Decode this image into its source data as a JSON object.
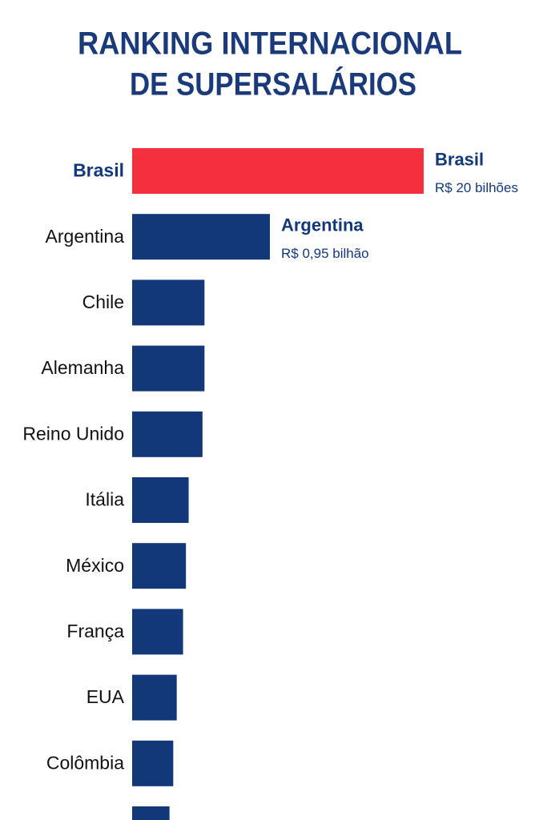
{
  "chart_data": {
    "type": "bar",
    "orientation": "horizontal",
    "log_scale": true,
    "title": [
      "RANKING INTERNACIONAL",
      "DE SUPERSALÁRIOS"
    ],
    "categories": [
      "Brasil",
      "Argentina",
      "Chile",
      "Alemanha",
      "Reino Unido",
      "Itália",
      "México",
      "França",
      "EUA",
      "Colômbia",
      null
    ],
    "values": [
      20,
      0.95,
      0.26,
      0.26,
      0.25,
      0.19,
      0.18,
      0.17,
      0.15,
      0.14,
      0.13
    ],
    "value_labels": [
      "R$ 20 bilhões",
      "R$ 0,95 bilhão",
      null,
      null,
      null,
      null,
      null,
      null,
      null,
      null,
      null
    ],
    "colors": [
      "#f5303e",
      "#13387a",
      "#13387a",
      "#13387a",
      "#13387a",
      "#13387a",
      "#13387a",
      "#13387a",
      "#13387a",
      "#13387a",
      "#13387a"
    ],
    "xlim": [
      0.062,
      20
    ]
  }
}
